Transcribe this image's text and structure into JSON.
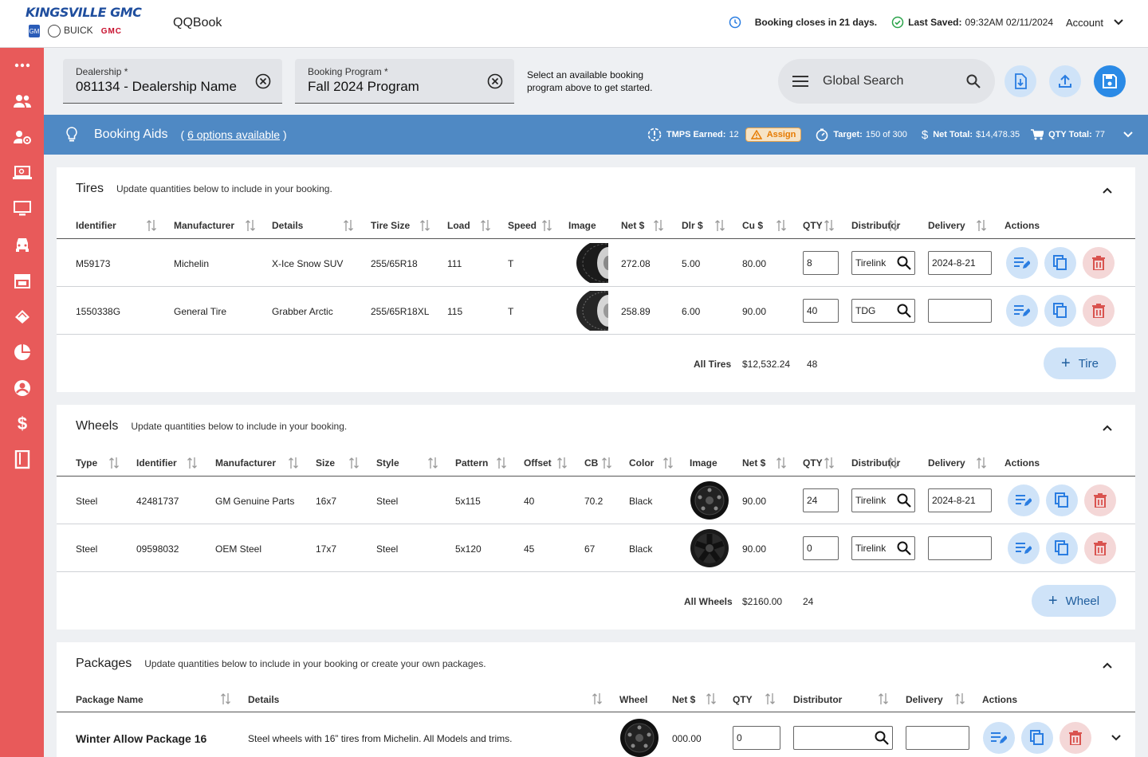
{
  "header": {
    "brand": {
      "dealer": "KINGSVILLE GMC",
      "buick": "BUICK",
      "gmc": "GMC",
      "gm": "GM"
    },
    "app_name": "QQBook",
    "booking_closes": "Booking closes in 21 days.",
    "last_saved_label": "Last Saved:",
    "last_saved_value": "09:32AM 02/11/2024",
    "account": "Account"
  },
  "sidebar": {
    "items": [
      "more-icon",
      "users-icon",
      "user-settings-icon",
      "laptop-icon",
      "monitor-icon",
      "vehicle-icon",
      "store-icon",
      "deals-icon",
      "pie-chart-icon",
      "account-circle-icon",
      "dollar-icon",
      "book-icon"
    ]
  },
  "filters": {
    "dealership": {
      "label": "Dealership *",
      "value": "081134 - Dealership Name"
    },
    "program": {
      "label": "Booking Program *",
      "value": "Fall 2024 Program"
    },
    "hint": "Select an available booking program above to get started.",
    "search_placeholder": "Global Search"
  },
  "aids": {
    "title": "Booking Aids",
    "options_prefix": "( ",
    "options_link": "6 options available",
    "options_suffix": " )",
    "tmps_label": "TMPS Earned:",
    "tmps_value": "12",
    "assign": "Assign",
    "target_label": "Target:",
    "target_value": "150 of 300",
    "net_label": "Net Total:",
    "net_value": "$14,478.35",
    "qty_label": "QTY Total:",
    "qty_value": "77",
    "colors": {
      "bar": "#4f89c4",
      "assign_bg": "#f6e3c5",
      "assign_fg": "#e67a00"
    }
  },
  "tires": {
    "title": "Tires",
    "subtitle": "Update quantities below to include in your booking.",
    "columns": [
      "Identifier",
      "Manufacturer",
      "Details",
      "Tire Size",
      "Load",
      "Speed",
      "Image",
      "Net $",
      "Dlr $",
      "Cu $",
      "QTY",
      "Distributor",
      "Delivery",
      "Actions"
    ],
    "rows": [
      {
        "identifier": "M59173",
        "manufacturer": "Michelin",
        "details": "X-Ice Snow SUV",
        "size": "255/65R18",
        "load": "111",
        "speed": "T",
        "net": "272.08",
        "dlr": "5.00",
        "cu": "80.00",
        "qty": "8",
        "distributor": "Tirelink",
        "delivery": "2024-8-21"
      },
      {
        "identifier": "1550338G",
        "manufacturer": "General Tire",
        "details": "Grabber Arctic",
        "size": "255/65R18XL",
        "load": "115",
        "speed": "T",
        "net": "258.89",
        "dlr": "6.00",
        "cu": "90.00",
        "qty": "40",
        "distributor": "TDG",
        "delivery": ""
      }
    ],
    "total_label": "All Tires",
    "total_value": "$12,532.24",
    "total_qty": "48",
    "add_label": "Tire"
  },
  "wheels": {
    "title": "Wheels",
    "subtitle": "Update quantities below to include in your booking.",
    "columns": [
      "Type",
      "Identifier",
      "Manufacturer",
      "Size",
      "Style",
      "Pattern",
      "Offset",
      "CB",
      "Color",
      "Image",
      "Net $",
      "QTY",
      "Distributor",
      "Delivery",
      "Actions"
    ],
    "rows": [
      {
        "type": "Steel",
        "identifier": "42481737",
        "manufacturer": "GM Genuine Parts",
        "size": "16x7",
        "style": "Steel",
        "pattern": "5x115",
        "offset": "40",
        "cb": "70.2",
        "color": "Black",
        "net": "90.00",
        "qty": "24",
        "distributor": "Tirelink",
        "delivery": "2024-8-21"
      },
      {
        "type": "Steel",
        "identifier": "09598032",
        "manufacturer": "OEM Steel",
        "size": "17x7",
        "style": "Steel",
        "pattern": "5x120",
        "offset": "45",
        "cb": "67",
        "color": "Black",
        "net": "90.00",
        "qty": "0",
        "distributor": "Tirelink",
        "delivery": ""
      }
    ],
    "total_label": "All Wheels",
    "total_value": "$2160.00",
    "total_qty": "24",
    "add_label": "Wheel"
  },
  "packages": {
    "title": "Packages",
    "subtitle": "Update quantities below to include in your booking or create your own packages.",
    "columns": [
      "Package Name",
      "Details",
      "Wheel",
      "Net $",
      "QTY",
      "Distributor",
      "Delivery",
      "Actions"
    ],
    "rows": [
      {
        "name": "Winter Allow Package 16",
        "details": "Steel wheels with 16” tires from Michelin. All Models and trims.",
        "net": "000.00",
        "qty": "0",
        "distributor": "",
        "delivery": ""
      }
    ]
  }
}
